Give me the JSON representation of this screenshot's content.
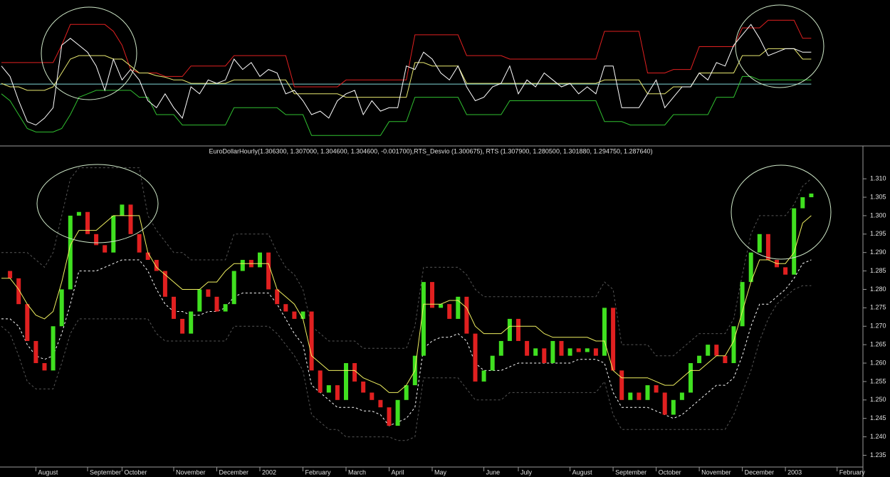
{
  "chart_data": [
    {
      "type": "line",
      "ylim": [
        0,
        100
      ],
      "level": 42,
      "level_color": "#7fd6d6",
      "series": [
        {
          "color": "#e02020",
          "values": [
            57.5,
            57.5,
            57.5,
            57.5,
            57.5,
            57.5,
            57.5,
            70,
            85,
            85,
            85,
            85,
            85,
            80,
            70,
            52.5,
            50,
            50,
            50,
            47.5,
            47.5,
            47.5,
            55,
            55,
            55,
            55,
            55,
            62.5,
            62.5,
            62.5,
            62.5,
            62.5,
            62.5,
            62.5,
            40,
            40,
            40,
            40,
            40,
            40,
            45,
            45,
            45,
            45,
            45,
            45,
            45,
            45,
            77.5,
            77.5,
            77.5,
            77.5,
            77.5,
            77.5,
            62.5,
            62.5,
            62.5,
            62.5,
            62.5,
            60,
            60,
            60,
            60,
            60,
            60,
            60,
            60,
            60,
            60,
            60,
            80,
            80,
            80,
            80,
            80,
            50,
            50,
            50,
            52.5,
            52.5,
            52.5,
            69,
            69,
            69,
            69,
            69,
            82.5,
            82.5,
            82.5,
            88,
            88,
            88,
            88,
            75,
            75,
            null,
            null,
            null,
            null,
            null
          ]
        },
        {
          "color": "#30c030",
          "values": [
            35,
            30,
            20,
            10,
            7.5,
            7.5,
            7.5,
            10,
            20,
            32.5,
            35,
            37.5,
            37.5,
            37.5,
            37.5,
            37.5,
            32.5,
            32.5,
            20,
            20,
            20,
            12.5,
            12.5,
            12.5,
            12.5,
            12.5,
            12.5,
            25,
            25,
            25,
            25,
            25,
            25,
            20,
            20,
            20,
            5,
            5,
            5,
            5,
            5,
            5,
            5,
            5,
            5,
            15,
            15,
            15,
            32.5,
            32.5,
            32.5,
            32.5,
            32.5,
            32.5,
            20,
            20,
            20,
            20,
            20,
            30,
            30,
            30,
            30,
            30,
            30,
            30,
            30,
            30,
            30,
            30,
            15,
            15,
            15,
            12.5,
            12.5,
            12.5,
            12.5,
            12.5,
            20,
            20,
            20,
            20,
            20,
            32.5,
            32.5,
            32.5,
            47.5,
            47.5,
            45,
            45,
            45,
            45,
            45,
            45,
            45,
            null,
            null,
            null,
            null,
            null
          ]
        },
        {
          "color": "#e8e870",
          "values": [
            42.5,
            40,
            40,
            37.5,
            37.5,
            37.5,
            40,
            50,
            60,
            62.5,
            62.5,
            62.5,
            62.5,
            60,
            60,
            55,
            50,
            50,
            48,
            47,
            45,
            45,
            42.5,
            42.5,
            42.5,
            42.5,
            42.5,
            45,
            45,
            45,
            45,
            45,
            45,
            45,
            35,
            35,
            35,
            35,
            35,
            35,
            32.5,
            32.5,
            32.5,
            32.5,
            32.5,
            32.5,
            32.5,
            32.5,
            57.5,
            57.5,
            55,
            55,
            55,
            55,
            42.5,
            42.5,
            42.5,
            42.5,
            42.5,
            42.5,
            42.5,
            42.5,
            42.5,
            42.5,
            42.5,
            42.5,
            42.5,
            42.5,
            42.5,
            42.5,
            45,
            45,
            45,
            45,
            45,
            35,
            35,
            35,
            40,
            40,
            40,
            50,
            50,
            50,
            50,
            50,
            62.5,
            62.5,
            62.5,
            67.5,
            67.5,
            67.5,
            67.5,
            60,
            60,
            null,
            null,
            null,
            null,
            null
          ]
        },
        {
          "color": "#ffffff",
          "values": [
            55,
            47.5,
            30,
            15,
            12.5,
            17.5,
            25,
            70,
            75,
            70,
            65,
            55,
            37.5,
            60,
            45,
            52.5,
            45,
            30,
            25,
            35,
            25,
            17.5,
            40,
            35,
            45,
            42.5,
            45,
            60,
            52.5,
            57.5,
            47.5,
            52.5,
            50,
            35,
            37.5,
            30,
            20,
            22.5,
            17.5,
            30,
            35,
            37.5,
            20,
            30,
            22.5,
            25,
            25,
            55,
            52.5,
            65,
            60,
            50,
            45,
            55,
            40,
            30,
            32.5,
            40,
            42.5,
            55,
            35,
            45,
            40,
            50,
            45,
            40,
            42.5,
            35,
            40,
            35,
            55,
            55,
            25,
            25,
            25,
            35,
            45,
            25,
            32.5,
            40,
            40,
            50,
            45,
            57.5,
            55,
            70,
            77.5,
            85,
            75,
            62.5,
            65,
            67.5,
            67.5,
            65,
            65,
            null,
            null,
            null,
            null,
            null
          ]
        }
      ]
    },
    {
      "type": "candlestick",
      "title": "EuroDollarHourly(1.306300, 1.307000, 1.304600, 1.304600, -0.001700),RTS_Desvio (1.300675), RTS (1.307900, 1.280500, 1.301880, 1.294750, 1.287640)",
      "categories": [
        null,
        null,
        null,
        null,
        "August",
        null,
        null,
        null,
        null,
        null,
        "September",
        null,
        null,
        null,
        "October",
        null,
        null,
        null,
        null,
        null,
        "November",
        null,
        null,
        null,
        null,
        "December",
        null,
        null,
        null,
        null,
        "2002",
        null,
        null,
        null,
        null,
        "February",
        null,
        null,
        null,
        null,
        "March",
        null,
        null,
        null,
        null,
        "April",
        null,
        null,
        null,
        null,
        "May",
        null,
        null,
        null,
        null,
        null,
        "June",
        null,
        null,
        null,
        "July",
        null,
        null,
        null,
        null,
        null,
        "August",
        null,
        null,
        null,
        null,
        "September",
        null,
        null,
        null,
        null,
        "October",
        null,
        null,
        null,
        null,
        "November",
        null,
        null,
        null,
        null,
        "December",
        null,
        null,
        null,
        null,
        "2003",
        null,
        null,
        null,
        null,
        null,
        "February",
        null,
        null
      ],
      "values": [
        1.285,
        1.283,
        1.276,
        1.266,
        1.26,
        1.258,
        1.27,
        1.28,
        1.3,
        1.301,
        1.295,
        1.292,
        1.29,
        1.3,
        1.303,
        1.295,
        1.29,
        1.288,
        1.285,
        1.278,
        1.272,
        1.268,
        1.274,
        1.28,
        1.278,
        1.274,
        1.276,
        1.285,
        1.288,
        1.286,
        1.29,
        1.28,
        1.276,
        1.274,
        1.272,
        1.274,
        1.258,
        1.252,
        1.254,
        1.25,
        1.26,
        1.255,
        1.252,
        1.25,
        1.248,
        1.243,
        1.25,
        1.254,
        1.262,
        1.282,
        1.275,
        1.276,
        1.272,
        1.278,
        1.268,
        1.255,
        1.258,
        1.262,
        1.266,
        1.272,
        1.266,
        1.262,
        1.264,
        1.26,
        1.266,
        1.262,
        1.264,
        1.263,
        1.264,
        1.262,
        1.275,
        1.258,
        1.25,
        1.252,
        1.25,
        1.254,
        1.252,
        1.246,
        1.25,
        1.252,
        1.26,
        1.262,
        1.265,
        1.262,
        1.26,
        1.27,
        1.282,
        1.29,
        1.295,
        1.288,
        1.286,
        1.284,
        1.302,
        1.305,
        1.306,
        null,
        null,
        null,
        null,
        null
      ],
      "color_up": "#40e020",
      "color_down": "#e02020",
      "series": [
        {
          "color": "#555555",
          "dash": true,
          "values": [
            1.29,
            1.29,
            1.29,
            1.29,
            1.288,
            1.286,
            1.29,
            1.3,
            1.31,
            1.313,
            1.313,
            1.313,
            1.313,
            1.313,
            1.313,
            1.313,
            1.313,
            1.3,
            1.296,
            1.293,
            1.29,
            1.29,
            1.288,
            1.288,
            1.288,
            1.288,
            1.288,
            1.295,
            1.295,
            1.295,
            1.295,
            1.295,
            1.29,
            1.286,
            1.284,
            1.28,
            1.27,
            1.268,
            1.266,
            1.266,
            1.266,
            1.266,
            1.264,
            1.264,
            1.264,
            1.264,
            1.264,
            1.264,
            1.27,
            1.286,
            1.286,
            1.286,
            1.286,
            1.286,
            1.284,
            1.28,
            1.278,
            1.278,
            1.278,
            1.278,
            1.278,
            1.278,
            1.278,
            1.278,
            1.278,
            1.278,
            1.278,
            1.278,
            1.278,
            1.278,
            1.282,
            1.28,
            1.265,
            1.265,
            1.265,
            1.265,
            1.262,
            1.262,
            1.262,
            1.264,
            1.266,
            1.268,
            1.268,
            1.268,
            1.268,
            1.272,
            1.284,
            1.295,
            1.3,
            1.3,
            1.3,
            1.3,
            1.303,
            1.308,
            1.31,
            null,
            null,
            null,
            null,
            null
          ]
        },
        {
          "color": "#555555",
          "dash": true,
          "values": [
            1.27,
            1.268,
            1.262,
            1.255,
            1.253,
            1.253,
            1.253,
            1.26,
            1.268,
            1.272,
            1.272,
            1.272,
            1.272,
            1.272,
            1.272,
            1.272,
            1.272,
            1.272,
            1.268,
            1.266,
            1.266,
            1.266,
            1.266,
            1.266,
            1.266,
            1.266,
            1.266,
            1.27,
            1.27,
            1.27,
            1.27,
            1.27,
            1.268,
            1.265,
            1.262,
            1.258,
            1.246,
            1.244,
            1.242,
            1.242,
            1.24,
            1.24,
            1.24,
            1.24,
            1.24,
            1.24,
            1.239,
            1.239,
            1.24,
            1.256,
            1.256,
            1.256,
            1.256,
            1.256,
            1.253,
            1.25,
            1.25,
            1.25,
            1.25,
            1.252,
            1.252,
            1.252,
            1.252,
            1.252,
            1.252,
            1.252,
            1.252,
            1.252,
            1.252,
            1.252,
            1.255,
            1.246,
            1.242,
            1.242,
            1.242,
            1.242,
            1.242,
            1.242,
            1.242,
            1.242,
            1.242,
            1.242,
            1.242,
            1.242,
            1.242,
            1.246,
            1.252,
            1.258,
            1.266,
            1.272,
            1.276,
            1.278,
            1.28,
            1.281,
            1.281,
            null,
            null,
            null,
            null,
            null
          ]
        },
        {
          "color": "#ffffff",
          "dash": true,
          "values": [
            1.272,
            1.272,
            1.27,
            1.265,
            1.262,
            1.261,
            1.262,
            1.268,
            1.276,
            1.285,
            1.285,
            1.285,
            1.286,
            1.287,
            1.288,
            1.288,
            1.288,
            1.285,
            1.28,
            1.276,
            1.274,
            1.274,
            1.273,
            1.273,
            1.274,
            1.274,
            1.275,
            1.278,
            1.279,
            1.279,
            1.279,
            1.279,
            1.276,
            1.272,
            1.268,
            1.265,
            1.254,
            1.252,
            1.25,
            1.248,
            1.248,
            1.248,
            1.247,
            1.247,
            1.246,
            1.243,
            1.244,
            1.245,
            1.248,
            1.264,
            1.266,
            1.267,
            1.267,
            1.268,
            1.266,
            1.26,
            1.258,
            1.258,
            1.258,
            1.259,
            1.26,
            1.26,
            1.26,
            1.26,
            1.26,
            1.26,
            1.26,
            1.261,
            1.261,
            1.261,
            1.26,
            1.252,
            1.248,
            1.248,
            1.248,
            1.248,
            1.247,
            1.246,
            1.245,
            1.246,
            1.248,
            1.25,
            1.252,
            1.254,
            1.254,
            1.256,
            1.262,
            1.27,
            1.276,
            1.276,
            1.278,
            1.28,
            1.283,
            1.287,
            1.288,
            null,
            null,
            null,
            null,
            null
          ]
        },
        {
          "color": "#f0f060",
          "dash": false,
          "values": [
            1.283,
            1.283,
            1.28,
            1.276,
            1.273,
            1.272,
            1.274,
            1.282,
            1.292,
            1.296,
            1.296,
            1.296,
            1.298,
            1.3,
            1.3,
            1.3,
            1.3,
            1.29,
            1.286,
            1.284,
            1.282,
            1.28,
            1.28,
            1.28,
            1.282,
            1.282,
            1.285,
            1.287,
            1.287,
            1.287,
            1.287,
            1.287,
            1.28,
            1.278,
            1.276,
            1.272,
            1.262,
            1.26,
            1.258,
            1.258,
            1.258,
            1.258,
            1.256,
            1.255,
            1.254,
            1.252,
            1.252,
            1.254,
            1.258,
            1.276,
            1.276,
            1.276,
            1.277,
            1.277,
            1.275,
            1.27,
            1.268,
            1.268,
            1.268,
            1.27,
            1.27,
            1.27,
            1.27,
            1.268,
            1.267,
            1.267,
            1.267,
            1.267,
            1.267,
            1.266,
            1.266,
            1.258,
            1.256,
            1.256,
            1.256,
            1.256,
            1.255,
            1.254,
            1.254,
            1.256,
            1.258,
            1.258,
            1.26,
            1.262,
            1.262,
            1.266,
            1.274,
            1.282,
            1.288,
            1.288,
            1.287,
            1.287,
            1.29,
            1.298,
            1.3,
            null,
            null,
            null,
            null,
            null
          ]
        }
      ],
      "ylim": [
        1.232,
        1.3164
      ],
      "yticks": [
        1.235,
        {
          "value": 1.24,
          "label": "1.240"
        },
        1.245,
        {
          "value": 1.25,
          "label": "1.250"
        },
        1.255,
        {
          "value": 1.26,
          "label": "1.260"
        },
        1.265,
        {
          "value": 1.27,
          "label": "1.270"
        },
        1.275,
        {
          "value": 1.28,
          "label": "1.280"
        },
        1.285,
        {
          "value": 1.29,
          "label": "1.290"
        },
        1.295,
        {
          "value": 1.3,
          "label": "1.300"
        },
        1.305,
        {
          "value": 1.31,
          "label": "1.310"
        }
      ]
    }
  ]
}
